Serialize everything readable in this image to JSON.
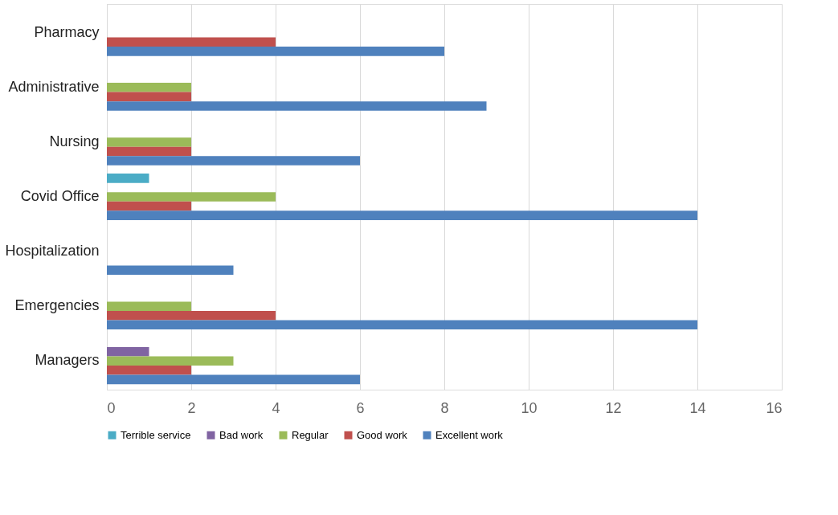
{
  "chart_data": {
    "type": "bar",
    "orientation": "horizontal",
    "categories": [
      "Pharmacy",
      "Administrative",
      "Nursing",
      "Covid Office",
      "Hospitalization",
      "Emergencies",
      "Managers"
    ],
    "series": [
      {
        "name": "Terrible service",
        "color": "#4bacc6",
        "values": [
          0,
          0,
          0,
          1,
          0,
          0,
          0
        ]
      },
      {
        "name": "Bad work",
        "color": "#8064a2",
        "values": [
          0,
          0,
          0,
          0,
          0,
          0,
          1
        ]
      },
      {
        "name": "Regular",
        "color": "#9bbb59",
        "values": [
          0,
          2,
          2,
          4,
          0,
          2,
          3
        ]
      },
      {
        "name": "Good work",
        "color": "#c0504d",
        "values": [
          4,
          2,
          2,
          2,
          0,
          4,
          2
        ]
      },
      {
        "name": "Excellent work",
        "color": "#4f81bd",
        "values": [
          8,
          9,
          6,
          14,
          3,
          14,
          6
        ]
      }
    ],
    "xlim": [
      0,
      16
    ],
    "xticks": [
      0,
      2,
      4,
      6,
      8,
      10,
      12,
      14,
      16
    ],
    "grid": "x",
    "legend": "bottom"
  }
}
